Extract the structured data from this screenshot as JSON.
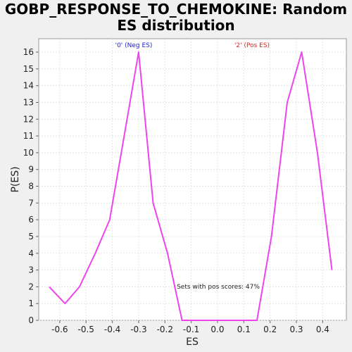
{
  "chart_data": {
    "type": "line",
    "title": "GOBP_RESPONSE_TO_CHEMOKINE: Random ES distribution",
    "title_lines": [
      "GOBP_RESPONSE_TO_CHEMOKINE: Random",
      "ES distribution"
    ],
    "xlabel": "ES",
    "ylabel": "P(ES)",
    "xlim": [
      -0.68,
      0.49
    ],
    "ylim": [
      0,
      16.8
    ],
    "xticks": [
      -0.6,
      -0.5,
      -0.4,
      -0.3,
      -0.2,
      -0.1,
      0.0,
      0.1,
      0.2,
      0.3,
      0.4
    ],
    "xtick_labels": [
      "-0.6",
      "-0.5",
      "-0.4",
      "-0.3",
      "-0.2",
      "-0.1",
      "0.0",
      "0.1",
      "0.2",
      "0.3",
      "0.4"
    ],
    "yticks": [
      0,
      1,
      2,
      3,
      4,
      5,
      6,
      7,
      8,
      9,
      10,
      11,
      12,
      13,
      14,
      15,
      16
    ],
    "ytick_labels": [
      "0",
      "1",
      "2",
      "3",
      "4",
      "5",
      "6",
      "7",
      "8",
      "9",
      "10",
      "11",
      "12",
      "13",
      "14",
      "15",
      "16"
    ],
    "grid": true,
    "series": [
      {
        "color": "#ee44ee",
        "x": [
          -0.64,
          -0.58,
          -0.525,
          -0.465,
          -0.41,
          -0.355,
          -0.3,
          -0.245,
          -0.19,
          -0.135,
          -0.08,
          -0.025,
          0.03,
          0.085,
          0.15,
          0.205,
          0.265,
          0.32,
          0.38,
          0.435
        ],
        "y": [
          2,
          1,
          2,
          4,
          6,
          11,
          16,
          7,
          4,
          0,
          0,
          0,
          0,
          0,
          0,
          5,
          13,
          16,
          10,
          3
        ]
      }
    ],
    "annotations": [
      {
        "text": "'0' (Neg ES)",
        "color": "#2222cc"
      },
      {
        "text": "'2' (Pos ES)",
        "color": "#dd2222"
      },
      {
        "text": "Sets with pos scores: 47%",
        "color": "#222222"
      }
    ]
  }
}
